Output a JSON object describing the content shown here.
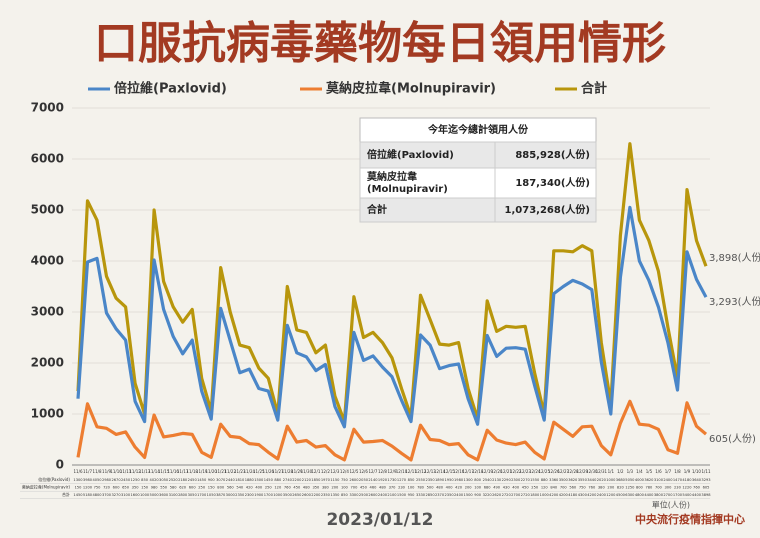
{
  "chart_data": {
    "type": "line",
    "title": "口服抗病毒藥物每日領用情形",
    "categories": [
      "11/6",
      "11/7",
      "11/8",
      "11/9",
      "11/10",
      "11/11",
      "11/12",
      "11/13",
      "11/14",
      "11/15",
      "11/16",
      "11/17",
      "11/18",
      "11/19",
      "11/20",
      "11/21",
      "11/22",
      "11/23",
      "11/24",
      "11/25",
      "11/26",
      "11/27",
      "11/28",
      "11/29",
      "11/30",
      "12/1",
      "12/2",
      "12/3",
      "12/4",
      "12/5",
      "12/6",
      "12/7",
      "12/8",
      "12/9",
      "12/10",
      "12/11",
      "12/12",
      "12/13",
      "12/14",
      "12/15",
      "12/16",
      "12/17",
      "12/18",
      "12/19",
      "12/20",
      "12/21",
      "12/22",
      "12/23",
      "12/24",
      "12/25",
      "12/26",
      "12/27",
      "12/28",
      "12/29",
      "12/30",
      "12/31",
      "1/1",
      "1/2",
      "1/3",
      "1/4",
      "1/5",
      "1/6",
      "1/7",
      "1/8",
      "1/9",
      "1/10",
      "1/11"
    ],
    "series": [
      {
        "name": "倍拉維(Paxlovid)",
        "color": "#4a86c8",
        "end_label": "3,293(人份)",
        "values": [
          1300,
          3980,
          4050,
          2980,
          2670,
          2450,
          1250,
          850,
          4020,
          3050,
          2520,
          2180,
          2450,
          1450,
          900,
          3070,
          2440,
          1810,
          1880,
          1500,
          1450,
          880,
          2740,
          2200,
          2120,
          1850,
          1970,
          1150,
          750,
          2600,
          2050,
          2140,
          1920,
          1730,
          1270,
          850,
          2550,
          2350,
          1890,
          1950,
          1980,
          1300,
          800,
          2540,
          2130,
          2290,
          2300,
          2270,
          1550,
          880,
          3360,
          3500,
          3620,
          3550,
          3440,
          2020,
          1000,
          3680,
          5050,
          4000,
          3620,
          3100,
          2400,
          1470,
          4180,
          3640,
          3293
        ]
      },
      {
        "name": "莫納皮拉韋(Molnupiravir)",
        "color": "#ed7d31",
        "end_label": "605(人份)",
        "values": [
          150,
          1200,
          750,
          720,
          600,
          650,
          350,
          150,
          980,
          550,
          580,
          620,
          600,
          250,
          150,
          800,
          560,
          540,
          420,
          400,
          250,
          120,
          760,
          450,
          480,
          350,
          380,
          200,
          100,
          700,
          450,
          460,
          480,
          370,
          230,
          100,
          780,
          500,
          480,
          400,
          420,
          200,
          100,
          680,
          490,
          430,
          400,
          450,
          250,
          120,
          840,
          700,
          560,
          750,
          760,
          380,
          200,
          820,
          1250,
          800,
          780,
          700,
          300,
          230,
          1220,
          760,
          605
        ]
      },
      {
        "name": "合計",
        "color": "#b8960c",
        "end_label": "3,898(人份)",
        "values": [
          1450,
          5180,
          4800,
          3700,
          3270,
          3100,
          1600,
          1000,
          5000,
          3600,
          3100,
          2800,
          3050,
          1700,
          1050,
          3870,
          3000,
          2350,
          2300,
          1900,
          1700,
          1000,
          3500,
          2650,
          2600,
          2200,
          2350,
          1350,
          850,
          3300,
          2500,
          2600,
          2400,
          2100,
          1500,
          950,
          3330,
          2850,
          2370,
          2350,
          2400,
          1500,
          900,
          3220,
          2620,
          2720,
          2700,
          2720,
          1800,
          1000,
          4200,
          4200,
          4180,
          4300,
          4200,
          2400,
          1200,
          4500,
          6300,
          4800,
          4400,
          3800,
          2700,
          1700,
          5400,
          4400,
          3898
        ]
      }
    ],
    "ylim": [
      0,
      7000
    ],
    "yticks": [
      0,
      1000,
      2000,
      3000,
      4000,
      5000,
      6000,
      7000
    ],
    "grid": true,
    "summary": {
      "title": "今年迄今總計領用人份",
      "rows": [
        {
          "name": [
            "倍拉維(Paxlovid)"
          ],
          "value": "885,928(人份)"
        },
        {
          "name": [
            "莫納皮拉韋",
            "(Molnupiravir)"
          ],
          "value": "187,340(人份)"
        },
        {
          "name": [
            "合計"
          ],
          "value": "1,073,268(人份)"
        }
      ]
    },
    "date": "2023/01/12",
    "unit": "單位(人份)",
    "source": "中央流行疫情指揮中心"
  }
}
